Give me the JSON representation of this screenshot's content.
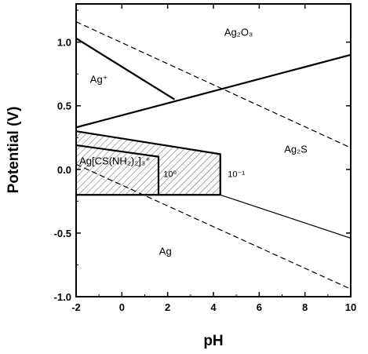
{
  "chart_data": {
    "type": "line",
    "title": "",
    "xlabel": "pH",
    "ylabel": "Potential (V)",
    "xlim": [
      -2,
      10
    ],
    "ylim": [
      -1.0,
      1.3
    ],
    "x_ticks": [
      -2,
      0,
      2,
      4,
      6,
      8,
      10
    ],
    "x_tick_labels": [
      "-2",
      "0",
      "2",
      "4",
      "6",
      "8",
      "10"
    ],
    "y_ticks": [
      -1.0,
      -0.5,
      0.0,
      0.5,
      1.0
    ],
    "y_tick_labels": [
      "-1.0",
      "-0.5",
      "0.0",
      "0.5",
      "1.0"
    ],
    "grid": false,
    "series": [
      {
        "style": "dashed",
        "x": [
          -2,
          10
        ],
        "y": [
          1.16,
          0.17
        ]
      },
      {
        "style": "dashed",
        "x": [
          -2,
          10
        ],
        "y": [
          0.04,
          -0.94
        ]
      },
      {
        "style": "solid-thick",
        "x": [
          -2,
          2.3
        ],
        "y": [
          1.03,
          0.55
        ]
      },
      {
        "style": "solid-thick",
        "x": [
          -2,
          10
        ],
        "y": [
          0.33,
          0.9
        ]
      },
      {
        "style": "solid-thick",
        "x": [
          -2,
          4.3,
          4.3
        ],
        "y": [
          0.3,
          0.12,
          -0.2
        ]
      },
      {
        "style": "solid-thick",
        "x": [
          -2,
          1.6,
          1.6
        ],
        "y": [
          0.19,
          0.1,
          -0.2
        ]
      },
      {
        "style": "solid-thick",
        "x": [
          -2,
          4.3
        ],
        "y": [
          -0.2,
          -0.2
        ]
      },
      {
        "style": "solid-thin",
        "x": [
          4.3,
          10
        ],
        "y": [
          -0.2,
          -0.54
        ]
      }
    ],
    "shaded_region": {
      "x": [
        -2,
        4.3,
        4.3,
        -2
      ],
      "y": [
        0.3,
        0.12,
        -0.2,
        -0.2
      ]
    },
    "annotations": [
      {
        "text": "Ag₂O₃",
        "x": 5.1,
        "y": 1.05
      },
      {
        "text": "Ag⁺",
        "x": -1.0,
        "y": 0.68
      },
      {
        "text": "Ag₂S",
        "x": 7.6,
        "y": 0.13
      },
      {
        "text": "Ag[CS(NH₂)₂]₃⁺",
        "x": -0.3,
        "y": 0.04
      },
      {
        "text": "10⁰",
        "x": 2.1,
        "y": -0.06
      },
      {
        "text": "10⁻¹",
        "x": 5.0,
        "y": -0.06
      },
      {
        "text": "Ag",
        "x": 1.9,
        "y": -0.67
      }
    ]
  }
}
